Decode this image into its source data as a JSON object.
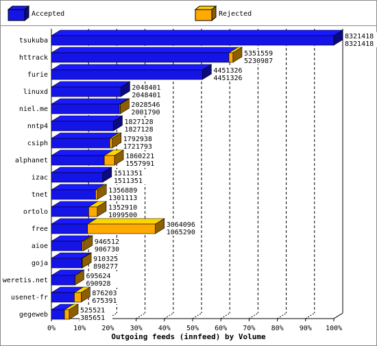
{
  "chart_data": {
    "type": "bar3d",
    "xlabel": "Outgoing feeds (innfeed) by Volume",
    "legend": [
      {
        "name": "Accepted",
        "color": "#1414e6"
      },
      {
        "name": "Rejected",
        "color": "#ffaa00"
      }
    ],
    "categories": [
      "tsukuba",
      "httrack",
      "furie",
      "linuxd",
      "niel.me",
      "nntp4",
      "csiph",
      "alphanet",
      "izac",
      "tnet",
      "ortolo",
      "free",
      "aioe",
      "goja",
      "weretis.net",
      "usenet-fr",
      "gegeweb"
    ],
    "totals": [
      8321418,
      5351559,
      4451326,
      2048401,
      2028546,
      1827128,
      1792938,
      1860221,
      1511351,
      1356889,
      1352910,
      3064096,
      946512,
      910325,
      695624,
      876203,
      525521
    ],
    "accepted": [
      8321418,
      5230987,
      4451326,
      2048401,
      2001790,
      1827128,
      1721793,
      1557991,
      1511351,
      1301113,
      1099500,
      1065290,
      906730,
      898277,
      690928,
      675391,
      385651
    ],
    "xlim": [
      0,
      100
    ],
    "xticks": [
      {
        "value": 0,
        "label": "0%"
      },
      {
        "value": 10,
        "label": "10%"
      },
      {
        "value": 20,
        "label": "20%"
      },
      {
        "value": 30,
        "label": "30%"
      },
      {
        "value": 40,
        "label": "40%"
      },
      {
        "value": 50,
        "label": "50%"
      },
      {
        "value": 60,
        "label": "60%"
      },
      {
        "value": 70,
        "label": "70%"
      },
      {
        "value": 80,
        "label": "80%"
      },
      {
        "value": 90,
        "label": "90%"
      },
      {
        "value": 100,
        "label": "100%"
      }
    ],
    "grid": true
  }
}
